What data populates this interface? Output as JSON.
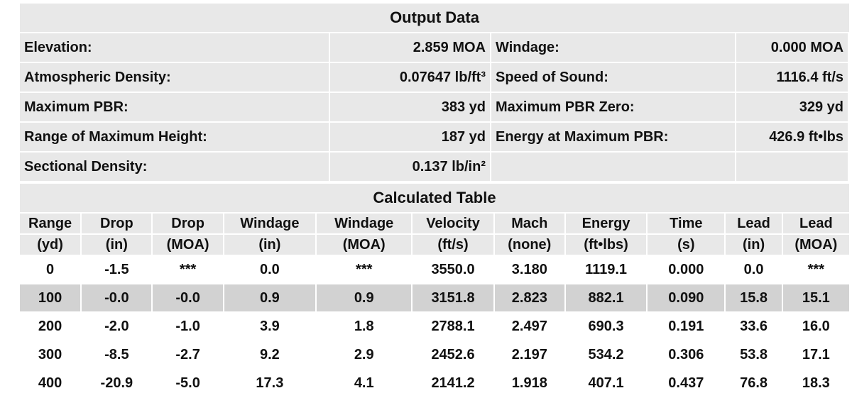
{
  "output_data": {
    "title": "Output Data",
    "rows": [
      [
        "Elevation:",
        "2.859 MOA",
        "Windage:",
        "0.000 MOA"
      ],
      [
        "Atmospheric Density:",
        "0.07647 lb/ft³",
        "Speed of Sound:",
        "1116.4 ft/s"
      ],
      [
        "Maximum PBR:",
        "383 yd",
        "Maximum PBR Zero:",
        "329 yd"
      ],
      [
        "Range of Maximum Height:",
        "187 yd",
        "Energy at Maximum PBR:",
        "426.9 ft•lbs"
      ],
      [
        "Sectional Density:",
        "0.137 lb/in²"
      ]
    ]
  },
  "calculated_table": {
    "title": "Calculated Table",
    "columns": [
      [
        "Range",
        "(yd)"
      ],
      [
        "Drop",
        "(in)"
      ],
      [
        "Drop",
        "(MOA)"
      ],
      [
        "Windage",
        "(in)"
      ],
      [
        "Windage",
        "(MOA)"
      ],
      [
        "Velocity",
        "(ft/s)"
      ],
      [
        "Mach",
        "(none)"
      ],
      [
        "Energy",
        "(ft•lbs)"
      ],
      [
        "Time",
        "(s)"
      ],
      [
        "Lead",
        "(in)"
      ],
      [
        "Lead",
        "(MOA)"
      ]
    ],
    "rows": [
      [
        "0",
        "-1.5",
        "***",
        "0.0",
        "***",
        "3550.0",
        "3.180",
        "1119.1",
        "0.000",
        "0.0",
        "***"
      ],
      [
        "100",
        "-0.0",
        "-0.0",
        "0.9",
        "0.9",
        "3151.8",
        "2.823",
        "882.1",
        "0.090",
        "15.8",
        "15.1"
      ],
      [
        "200",
        "-2.0",
        "-1.0",
        "3.9",
        "1.8",
        "2788.1",
        "2.497",
        "690.3",
        "0.191",
        "33.6",
        "16.0"
      ],
      [
        "300",
        "-8.5",
        "-2.7",
        "9.2",
        "2.9",
        "2452.6",
        "2.197",
        "534.2",
        "0.306",
        "53.8",
        "17.1"
      ],
      [
        "400",
        "-20.9",
        "-5.0",
        "17.3",
        "4.1",
        "2141.2",
        "1.918",
        "407.1",
        "0.437",
        "76.8",
        "18.3"
      ]
    ]
  }
}
